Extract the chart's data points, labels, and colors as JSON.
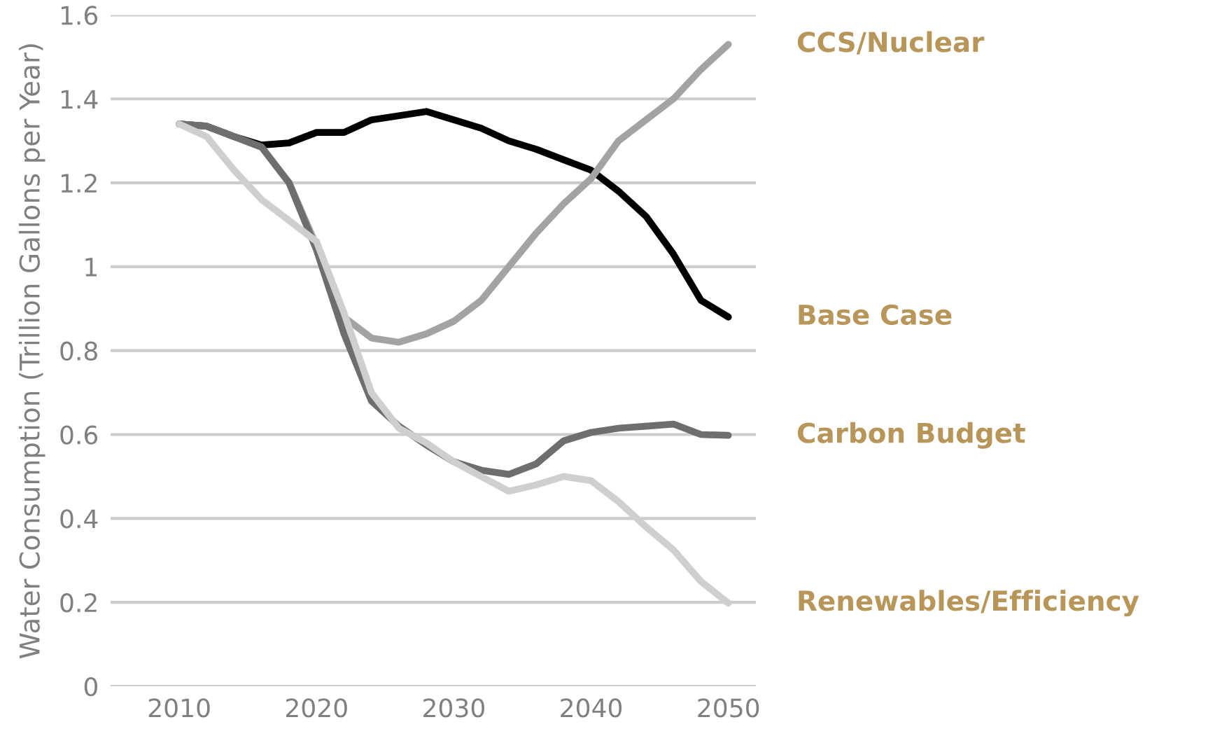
{
  "chart_data": {
    "type": "line",
    "ylabel": "Water Consumption (Trillion Gallons per Year)",
    "x": [
      2010,
      2012,
      2014,
      2016,
      2018,
      2020,
      2022,
      2024,
      2026,
      2028,
      2030,
      2032,
      2034,
      2036,
      2038,
      2040,
      2042,
      2044,
      2046,
      2048,
      2050
    ],
    "series": [
      {
        "name": "Base Case",
        "color": "#000000",
        "values": [
          1.34,
          1.335,
          1.31,
          1.29,
          1.295,
          1.32,
          1.32,
          1.35,
          1.36,
          1.37,
          1.35,
          1.33,
          1.3,
          1.28,
          1.255,
          1.23,
          1.18,
          1.12,
          1.03,
          0.92,
          0.88
        ]
      },
      {
        "name": "CCS/Nuclear",
        "color": "#a3a3a3",
        "values": [
          1.34,
          1.335,
          1.31,
          1.285,
          1.2,
          1.05,
          0.88,
          0.83,
          0.82,
          0.84,
          0.87,
          0.92,
          1.0,
          1.08,
          1.15,
          1.21,
          1.3,
          1.35,
          1.4,
          1.47,
          1.53
        ]
      },
      {
        "name": "Carbon Budget",
        "color": "#6e6e6e",
        "values": [
          1.34,
          1.335,
          1.31,
          1.285,
          1.2,
          1.04,
          0.84,
          0.68,
          0.62,
          0.575,
          0.535,
          0.515,
          0.505,
          0.53,
          0.585,
          0.605,
          0.615,
          0.62,
          0.625,
          0.6,
          0.598
        ]
      },
      {
        "name": "Renewables/Efficiency",
        "color": "#cfcfcf",
        "values": [
          1.34,
          1.31,
          1.23,
          1.16,
          1.11,
          1.06,
          0.89,
          0.7,
          0.615,
          0.58,
          0.535,
          0.5,
          0.465,
          0.48,
          0.5,
          0.49,
          0.44,
          0.38,
          0.325,
          0.25,
          0.198
        ]
      }
    ],
    "xlim": [
      2005,
      2052
    ],
    "xticks": [
      2010,
      2020,
      2030,
      2040,
      2050
    ],
    "ylim": [
      0,
      1.6
    ],
    "yticks": [
      0,
      0.2,
      0.4,
      0.6,
      0.8,
      1,
      1.2,
      1.4,
      1.6
    ],
    "grid": "y",
    "line_style": "solid",
    "marker": "none"
  }
}
